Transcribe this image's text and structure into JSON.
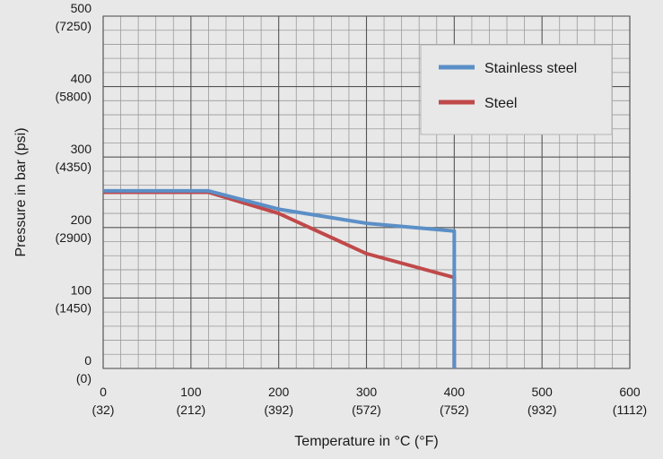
{
  "chart_data": {
    "type": "line",
    "xlabel": "Temperature in °C (°F)",
    "ylabel": "Pressure in bar (psi)",
    "xlim": [
      0,
      600
    ],
    "ylim": [
      0,
      500
    ],
    "grid": true,
    "legend_position": "top-right",
    "x_ticks": [
      {
        "value": 0,
        "primary": "0",
        "secondary": "(32)"
      },
      {
        "value": 100,
        "primary": "100",
        "secondary": "(212)"
      },
      {
        "value": 200,
        "primary": "200",
        "secondary": "(392)"
      },
      {
        "value": 300,
        "primary": "300",
        "secondary": "(572)"
      },
      {
        "value": 400,
        "primary": "400",
        "secondary": "(752)"
      },
      {
        "value": 500,
        "primary": "500",
        "secondary": "(932)"
      },
      {
        "value": 600,
        "primary": "600",
        "secondary": "(1112)"
      }
    ],
    "y_ticks": [
      {
        "value": 0,
        "primary": "0",
        "secondary": "(0)"
      },
      {
        "value": 100,
        "primary": "100",
        "secondary": "(1450)"
      },
      {
        "value": 200,
        "primary": "200",
        "secondary": "(2900)"
      },
      {
        "value": 300,
        "primary": "300",
        "secondary": "(4350)"
      },
      {
        "value": 400,
        "primary": "400",
        "secondary": "(5800)"
      },
      {
        "value": 500,
        "primary": "500",
        "secondary": "(7250)"
      }
    ],
    "series": [
      {
        "name": "Stainless steel",
        "color": "#5b8fc7",
        "points": [
          [
            0,
            252
          ],
          [
            120,
            252
          ],
          [
            200,
            226
          ],
          [
            300,
            206
          ],
          [
            400,
            195
          ],
          [
            400,
            0
          ]
        ]
      },
      {
        "name": "Steel",
        "color": "#c0494a",
        "points": [
          [
            0,
            250
          ],
          [
            120,
            250
          ],
          [
            200,
            220
          ],
          [
            300,
            163
          ],
          [
            400,
            129
          ],
          [
            400,
            0
          ]
        ]
      }
    ]
  }
}
